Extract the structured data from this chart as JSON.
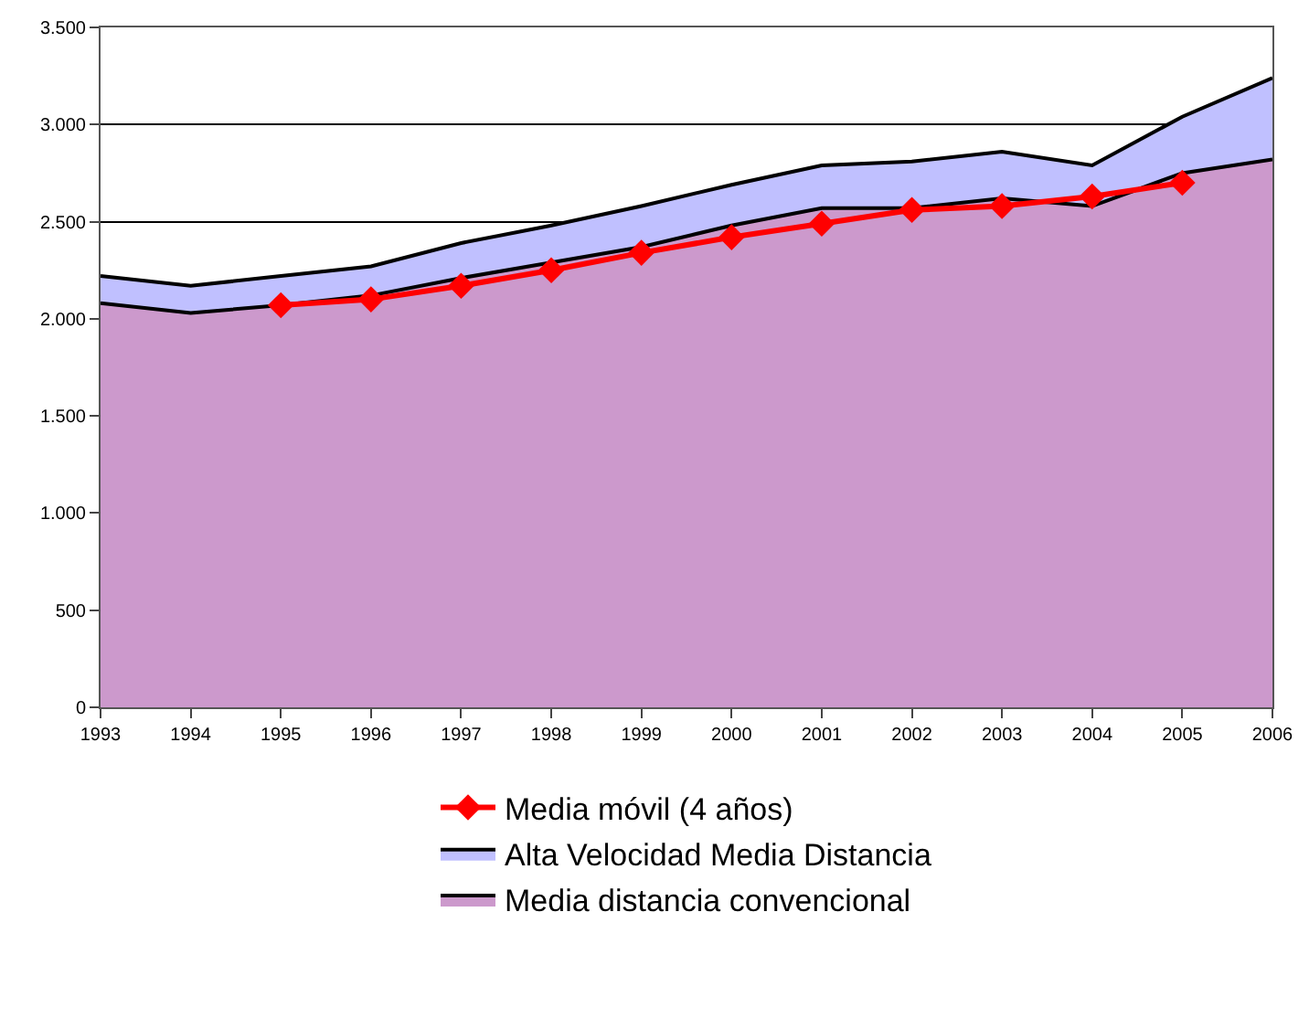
{
  "chart_data": {
    "type": "area",
    "stacked": true,
    "categories": [
      "1993",
      "1994",
      "1995",
      "1996",
      "1997",
      "1998",
      "1999",
      "2000",
      "2001",
      "2002",
      "2003",
      "2004",
      "2005",
      "2006"
    ],
    "series": [
      {
        "name": "Media distancia convencional",
        "color": "#cc99cc",
        "values": [
          2080,
          2030,
          2070,
          2120,
          2210,
          2290,
          2370,
          2480,
          2570,
          2570,
          2620,
          2580,
          2750,
          2820
        ]
      },
      {
        "name": "Alta Velocidad Media Distancia",
        "color": "#c0c0ff",
        "values": [
          140,
          140,
          150,
          150,
          180,
          190,
          210,
          210,
          220,
          240,
          240,
          210,
          290,
          420
        ]
      },
      {
        "name": "Media móvil (4 años)",
        "type": "line",
        "color": "#ff0000",
        "marker": "diamond",
        "values": [
          null,
          null,
          2070,
          2100,
          2170,
          2250,
          2340,
          2420,
          2490,
          2560,
          2580,
          2630,
          2700,
          null
        ]
      }
    ],
    "ylim": [
      0,
      3500
    ],
    "yticks": [
      0,
      500,
      {
        "value": 1000,
        "label": "1.000"
      },
      {
        "value": 1500,
        "label": "1.500"
      },
      {
        "value": 2000,
        "label": "2.000"
      },
      {
        "value": 2500,
        "label": "2.500"
      },
      {
        "value": 3000,
        "label": "3.000"
      },
      {
        "value": 3500,
        "label": "3.500"
      }
    ],
    "grid": "y",
    "legend": "bottom"
  }
}
